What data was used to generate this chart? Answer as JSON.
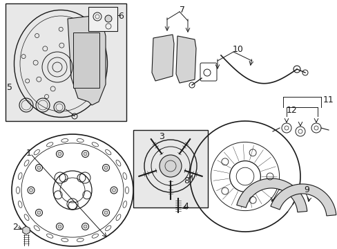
{
  "bg_color": "#ffffff",
  "line_color": "#1a1a1a",
  "gray_fill": "#e8e8e8",
  "light_gray": "#d4d4d4",
  "mid_gray": "#b0b0b0"
}
